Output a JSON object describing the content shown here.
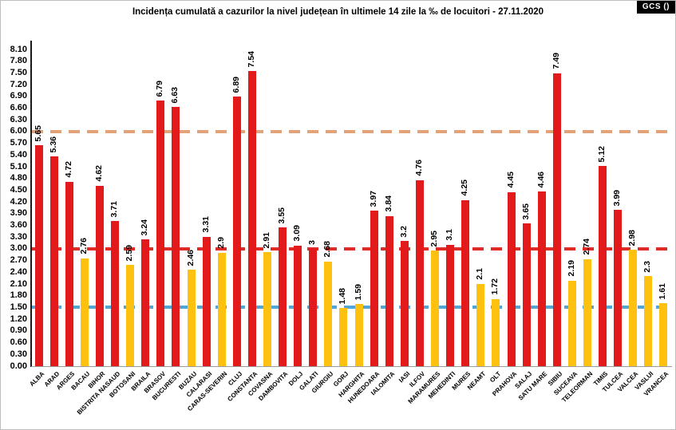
{
  "badge": {
    "label": "GCS ()"
  },
  "chart_data": {
    "type": "bar",
    "title": "Incidența cumulată a cazurilor la nivel județean în ultimele 14 zile la ‰ de locuitori - 27.11.2020",
    "xlabel": "",
    "ylabel": "",
    "ylim": [
      0,
      8.1
    ],
    "ytick_step": 0.3,
    "yticks": [
      "0.00",
      "0.30",
      "0.60",
      "0.90",
      "1.20",
      "1.50",
      "1.80",
      "2.10",
      "2.40",
      "2.70",
      "3.00",
      "3.30",
      "3.60",
      "3.90",
      "4.20",
      "4.50",
      "4.80",
      "5.10",
      "5.40",
      "5.70",
      "6.00",
      "6.30",
      "6.60",
      "6.90",
      "7.20",
      "7.50",
      "7.80",
      "8.10"
    ],
    "grid": false,
    "legend": null,
    "categories": [
      "ALBA",
      "ARAD",
      "ARGES",
      "BACAU",
      "BIHOR",
      "BISTRITA NASAUD",
      "BOTOSANI",
      "BRAILA",
      "BRASOV",
      "BUCURESTI",
      "BUZAU",
      "CALARASI",
      "CARAS-SEVERIN",
      "CLUJ",
      "CONSTANTA",
      "COVASNA",
      "DAMBOVITA",
      "DOLJ",
      "GALATI",
      "GIURGIU",
      "GORJ",
      "HARGHITA",
      "HUNEDOARA",
      "IALOMITA",
      "IASI",
      "ILFOV",
      "MARAMURES",
      "MEHEDINTI",
      "MURES",
      "NEAMT",
      "OLT",
      "PRAHOVA",
      "SALAJ",
      "SATU MARE",
      "SIBIU",
      "SUCEAVA",
      "TELEORMAN",
      "TIMIS",
      "TULCEA",
      "VALCEA",
      "VASLUI",
      "VRANCEA"
    ],
    "values": [
      5.65,
      5.36,
      4.72,
      2.76,
      4.62,
      3.71,
      2.59,
      3.24,
      6.79,
      6.63,
      2.46,
      3.31,
      2.9,
      6.89,
      7.54,
      2.91,
      3.55,
      3.09,
      3,
      2.68,
      1.48,
      1.59,
      3.97,
      3.84,
      3.2,
      4.76,
      2.95,
      3.1,
      4.25,
      2.1,
      1.72,
      4.45,
      3.65,
      4.46,
      7.49,
      2.19,
      2.74,
      5.12,
      3.99,
      2.98,
      2.3,
      1.61
    ],
    "value_labels": [
      "5.65",
      "5.36",
      "4.72",
      "2.76",
      "4.62",
      "3.71",
      "2.59",
      "3.24",
      "6.79",
      "6.63",
      "2.46",
      "3.31",
      "2.9",
      "6.89",
      "7.54",
      "2.91",
      "3.55",
      "3.09",
      "3",
      "2.68",
      "1.48",
      "1.59",
      "3.97",
      "3.84",
      "3.2",
      "4.76",
      "2.95",
      "3.1",
      "4.25",
      "2.1",
      "1.72",
      "4.45",
      "3.65",
      "4.46",
      "7.49",
      "2.19",
      "2.74",
      "5.12",
      "3.99",
      "2.98",
      "2.3",
      "1.61"
    ],
    "bar_colors": [
      "red",
      "red",
      "red",
      "yellow",
      "red",
      "red",
      "yellow",
      "red",
      "red",
      "red",
      "yellow",
      "red",
      "yellow",
      "red",
      "red",
      "yellow",
      "red",
      "red",
      "red",
      "yellow",
      "yellow",
      "yellow",
      "red",
      "red",
      "red",
      "red",
      "yellow",
      "red",
      "red",
      "yellow",
      "yellow",
      "red",
      "red",
      "red",
      "red",
      "yellow",
      "yellow",
      "red",
      "red",
      "yellow",
      "yellow",
      "yellow"
    ],
    "palette": {
      "red": "#E31A1C",
      "yellow": "#FFC110"
    },
    "color_rule": "red if value >= 3.00 else yellow",
    "reference_lines": [
      {
        "value": 6.0,
        "color": "#E2A379",
        "style": "dashed"
      },
      {
        "value": 3.0,
        "color": "#E02A25",
        "style": "dashed"
      },
      {
        "value": 1.5,
        "color": "#4FA7D8",
        "style": "dashed"
      }
    ]
  }
}
